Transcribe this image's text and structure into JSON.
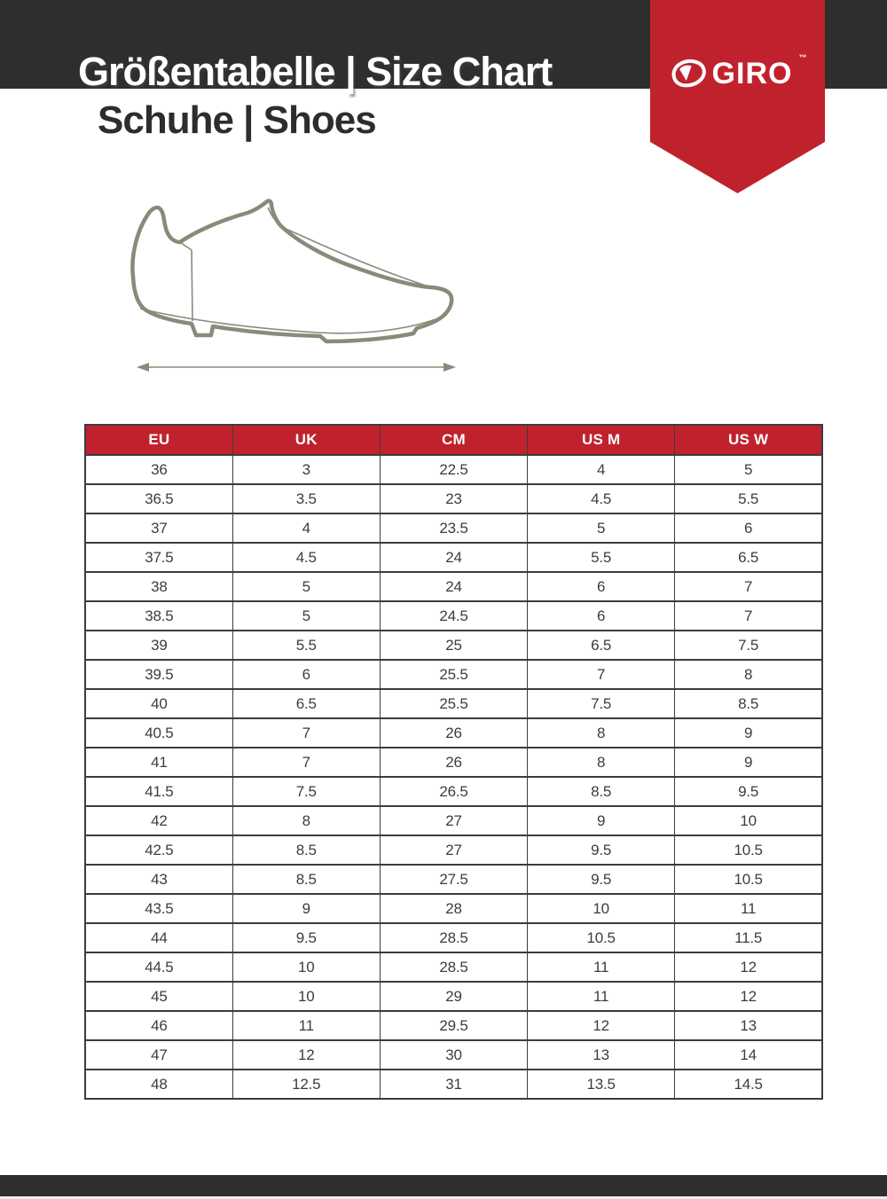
{
  "header": {
    "title": "Größentabelle | Size Chart",
    "subtitle": "Schuhe | Shoes",
    "brand": "GIRO",
    "trademark": "™"
  },
  "figure": {
    "shoe_icon": "shoe-side-view-icon",
    "arrow_icon": "length-double-arrow-icon"
  },
  "colors": {
    "accent_red": "#c0222d",
    "bar_dark": "#2e2e2e",
    "shoe_line": "#8a8a79",
    "table_border": "#3c3c3c",
    "cell_text": "#3d3d3d"
  },
  "table": {
    "headers": [
      "EU",
      "UK",
      "CM",
      "US M",
      "US W"
    ],
    "rows": [
      [
        "36",
        "3",
        "22.5",
        "4",
        "5"
      ],
      [
        "36.5",
        "3.5",
        "23",
        "4.5",
        "5.5"
      ],
      [
        "37",
        "4",
        "23.5",
        "5",
        "6"
      ],
      [
        "37.5",
        "4.5",
        "24",
        "5.5",
        "6.5"
      ],
      [
        "38",
        "5",
        "24",
        "6",
        "7"
      ],
      [
        "38.5",
        "5",
        "24.5",
        "6",
        "7"
      ],
      [
        "39",
        "5.5",
        "25",
        "6.5",
        "7.5"
      ],
      [
        "39.5",
        "6",
        "25.5",
        "7",
        "8"
      ],
      [
        "40",
        "6.5",
        "25.5",
        "7.5",
        "8.5"
      ],
      [
        "40.5",
        "7",
        "26",
        "8",
        "9"
      ],
      [
        "41",
        "7",
        "26",
        "8",
        "9"
      ],
      [
        "41.5",
        "7.5",
        "26.5",
        "8.5",
        "9.5"
      ],
      [
        "42",
        "8",
        "27",
        "9",
        "10"
      ],
      [
        "42.5",
        "8.5",
        "27",
        "9.5",
        "10.5"
      ],
      [
        "43",
        "8.5",
        "27.5",
        "9.5",
        "10.5"
      ],
      [
        "43.5",
        "9",
        "28",
        "10",
        "11"
      ],
      [
        "44",
        "9.5",
        "28.5",
        "10.5",
        "11.5"
      ],
      [
        "44.5",
        "10",
        "28.5",
        "11",
        "12"
      ],
      [
        "45",
        "10",
        "29",
        "11",
        "12"
      ],
      [
        "46",
        "11",
        "29.5",
        "12",
        "13"
      ],
      [
        "47",
        "12",
        "30",
        "13",
        "14"
      ],
      [
        "48",
        "12.5",
        "31",
        "13.5",
        "14.5"
      ]
    ]
  }
}
